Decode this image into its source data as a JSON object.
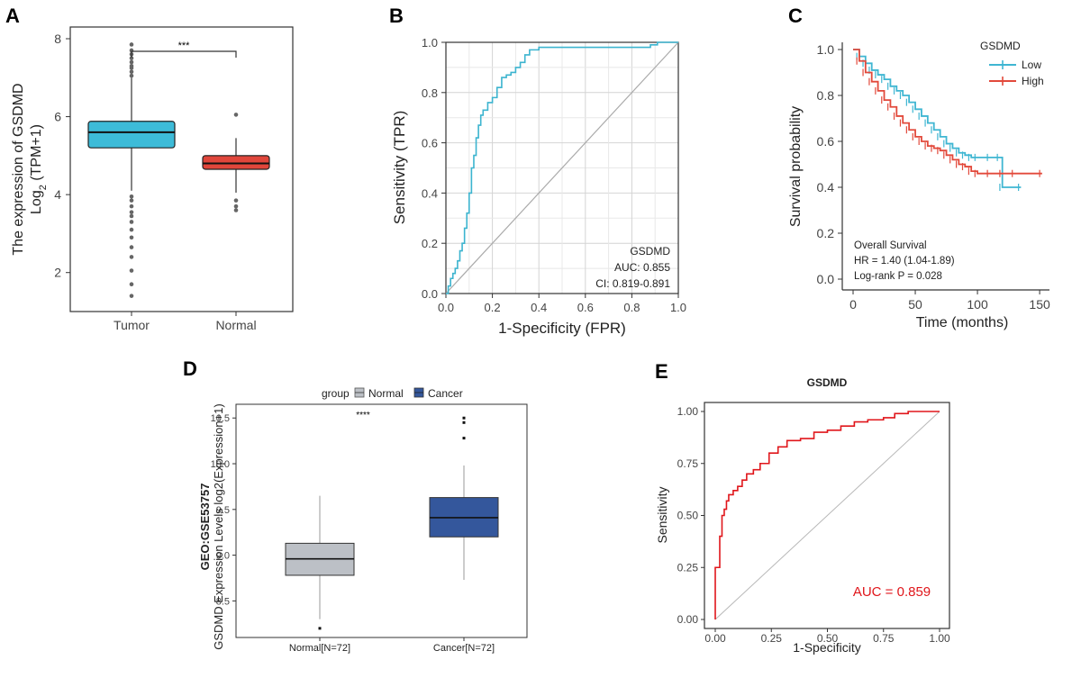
{
  "panels": {
    "A": {
      "label": "A"
    },
    "B": {
      "label": "B"
    },
    "C": {
      "label": "C"
    },
    "D": {
      "label": "D"
    },
    "E": {
      "label": "E"
    }
  },
  "colors": {
    "tumor": "#3dbbd8",
    "normal_red": "#e0463b",
    "roc_blue": "#3cb4cf",
    "km_low": "#3fb6d2",
    "km_high": "#e2493b",
    "d_normal": "#bcc0c6",
    "d_cancer": "#34579c",
    "roc_red": "#e0161b",
    "diag": "#b0b0b0",
    "text": "#333333"
  },
  "chart_data": [
    {
      "id": "A",
      "type": "box",
      "ylabel_line1": "The expression of GSDMD",
      "ylabel_line2_prefix": "Log",
      "ylabel_line2_sub": "2",
      "ylabel_line2_suffix": " (TPM+1)",
      "ylim": [
        1,
        8.3
      ],
      "yticks": [
        2,
        4,
        6,
        8
      ],
      "categories": [
        "Tumor",
        "Normal"
      ],
      "boxes": [
        {
          "name": "Tumor",
          "whisker_low": 4.1,
          "q1": 5.2,
          "median": 5.6,
          "q3": 5.88,
          "whisker_high": 7.0,
          "outliers": [
            7.05,
            7.15,
            7.25,
            7.3,
            7.4,
            7.5,
            7.6,
            7.7,
            7.85,
            3.95,
            3.85,
            3.7,
            3.55,
            3.45,
            3.3,
            3.1,
            2.9,
            2.65,
            2.4,
            2.05,
            1.7,
            1.4
          ]
        },
        {
          "name": "Normal",
          "whisker_low": 4.05,
          "q1": 4.65,
          "median": 4.8,
          "q3": 5.0,
          "whisker_high": 5.45,
          "outliers": [
            6.05,
            3.85,
            3.7,
            3.6
          ]
        }
      ],
      "significance": "***"
    },
    {
      "id": "B",
      "type": "roc",
      "xlabel": "1-Specificity (FPR)",
      "ylabel": "Sensitivity (TPR)",
      "xticks": [
        "0.0",
        "0.2",
        "0.4",
        "0.6",
        "0.8",
        "1.0"
      ],
      "yticks": [
        "0.0",
        "0.2",
        "0.4",
        "0.6",
        "0.8",
        "1.0"
      ],
      "legend_title": "GSDMD",
      "auc_text": "AUC: 0.855",
      "ci_text": "CI: 0.819-0.891",
      "curve": [
        [
          0,
          0
        ],
        [
          0.01,
          0.03
        ],
        [
          0.02,
          0.06
        ],
        [
          0.03,
          0.08
        ],
        [
          0.04,
          0.1
        ],
        [
          0.05,
          0.13
        ],
        [
          0.06,
          0.17
        ],
        [
          0.07,
          0.2
        ],
        [
          0.08,
          0.26
        ],
        [
          0.09,
          0.32
        ],
        [
          0.1,
          0.4
        ],
        [
          0.11,
          0.5
        ],
        [
          0.12,
          0.55
        ],
        [
          0.13,
          0.62
        ],
        [
          0.14,
          0.67
        ],
        [
          0.15,
          0.71
        ],
        [
          0.16,
          0.73
        ],
        [
          0.18,
          0.76
        ],
        [
          0.2,
          0.78
        ],
        [
          0.22,
          0.82
        ],
        [
          0.24,
          0.86
        ],
        [
          0.26,
          0.87
        ],
        [
          0.28,
          0.88
        ],
        [
          0.3,
          0.9
        ],
        [
          0.32,
          0.92
        ],
        [
          0.34,
          0.95
        ],
        [
          0.36,
          0.97
        ],
        [
          0.4,
          0.98
        ],
        [
          0.6,
          0.98
        ],
        [
          0.86,
          0.98
        ],
        [
          0.88,
          0.99
        ],
        [
          0.91,
          1.0
        ],
        [
          1.0,
          1.0
        ]
      ]
    },
    {
      "id": "C",
      "type": "km",
      "xlabel": "Time (months)",
      "ylabel": "Survival probability",
      "xticks": [
        "0",
        "50",
        "100",
        "150"
      ],
      "yticks": [
        "0.0",
        "0.2",
        "0.4",
        "0.6",
        "0.8",
        "1.0"
      ],
      "legend_title": "GSDMD",
      "series": [
        {
          "name": "Low",
          "points": [
            [
              0,
              1.0
            ],
            [
              5,
              0.97
            ],
            [
              10,
              0.94
            ],
            [
              15,
              0.91
            ],
            [
              20,
              0.89
            ],
            [
              25,
              0.87
            ],
            [
              30,
              0.84
            ],
            [
              35,
              0.82
            ],
            [
              40,
              0.8
            ],
            [
              45,
              0.77
            ],
            [
              50,
              0.74
            ],
            [
              55,
              0.71
            ],
            [
              60,
              0.68
            ],
            [
              65,
              0.65
            ],
            [
              70,
              0.62
            ],
            [
              75,
              0.59
            ],
            [
              80,
              0.57
            ],
            [
              85,
              0.55
            ],
            [
              90,
              0.54
            ],
            [
              95,
              0.53
            ],
            [
              100,
              0.53
            ],
            [
              110,
              0.53
            ],
            [
              118,
              0.53
            ],
            [
              120,
              0.4
            ],
            [
              135,
              0.4
            ]
          ]
        },
        {
          "name": "High",
          "points": [
            [
              0,
              1.0
            ],
            [
              5,
              0.95
            ],
            [
              10,
              0.9
            ],
            [
              15,
              0.86
            ],
            [
              20,
              0.82
            ],
            [
              25,
              0.78
            ],
            [
              30,
              0.75
            ],
            [
              35,
              0.71
            ],
            [
              40,
              0.68
            ],
            [
              45,
              0.65
            ],
            [
              50,
              0.62
            ],
            [
              55,
              0.6
            ],
            [
              60,
              0.58
            ],
            [
              65,
              0.57
            ],
            [
              70,
              0.56
            ],
            [
              75,
              0.54
            ],
            [
              80,
              0.52
            ],
            [
              85,
              0.5
            ],
            [
              90,
              0.49
            ],
            [
              95,
              0.47
            ],
            [
              100,
              0.46
            ],
            [
              110,
              0.46
            ],
            [
              120,
              0.46
            ],
            [
              130,
              0.46
            ],
            [
              152,
              0.46
            ]
          ]
        }
      ],
      "annotation_lines": [
        "Overall Survival",
        "HR = 1.40 (1.04-1.89)",
        "Log-rank P = 0.028"
      ]
    },
    {
      "id": "D",
      "type": "box",
      "legend_title": "group",
      "legend_items": [
        "Normal",
        "Cancer"
      ],
      "ylabel_line1": "GEO:GSE53757",
      "ylabel_line2": "GSDMD Expression Levels log2(Expression+1)",
      "ylim": [
        8.1,
        10.65
      ],
      "yticks": [
        "8.5",
        "9.0",
        "9.5",
        "10.0",
        "10.5"
      ],
      "categories": [
        "Normal[N=72]",
        "Cancer[N=72]"
      ],
      "boxes": [
        {
          "name": "Normal",
          "whisker_low": 8.3,
          "q1": 8.78,
          "median": 8.96,
          "q3": 9.13,
          "whisker_high": 9.65,
          "outliers": [
            8.2
          ]
        },
        {
          "name": "Cancer",
          "whisker_low": 8.73,
          "q1": 9.2,
          "median": 9.41,
          "q3": 9.63,
          "whisker_high": 9.98,
          "outliers": [
            10.28,
            10.45,
            10.5
          ]
        }
      ],
      "significance": "****"
    },
    {
      "id": "E",
      "type": "roc",
      "title": "GSDMD",
      "xlabel": "1-Specificity",
      "ylabel": "Sensitivity",
      "xticks": [
        "0.00",
        "0.25",
        "0.50",
        "0.75",
        "1.00"
      ],
      "yticks": [
        "0.00",
        "0.25",
        "0.50",
        "0.75",
        "1.00"
      ],
      "auc_text": "AUC = 0.859",
      "curve": [
        [
          0,
          0
        ],
        [
          0,
          0.25
        ],
        [
          0.02,
          0.25
        ],
        [
          0.02,
          0.4
        ],
        [
          0.03,
          0.45
        ],
        [
          0.03,
          0.5
        ],
        [
          0.04,
          0.53
        ],
        [
          0.05,
          0.57
        ],
        [
          0.06,
          0.6
        ],
        [
          0.08,
          0.62
        ],
        [
          0.1,
          0.64
        ],
        [
          0.12,
          0.67
        ],
        [
          0.14,
          0.7
        ],
        [
          0.17,
          0.72
        ],
        [
          0.2,
          0.75
        ],
        [
          0.24,
          0.8
        ],
        [
          0.28,
          0.83
        ],
        [
          0.32,
          0.86
        ],
        [
          0.38,
          0.87
        ],
        [
          0.44,
          0.9
        ],
        [
          0.5,
          0.91
        ],
        [
          0.56,
          0.93
        ],
        [
          0.62,
          0.95
        ],
        [
          0.68,
          0.96
        ],
        [
          0.75,
          0.97
        ],
        [
          0.8,
          0.99
        ],
        [
          0.86,
          1.0
        ],
        [
          1.0,
          1.0
        ]
      ]
    }
  ]
}
